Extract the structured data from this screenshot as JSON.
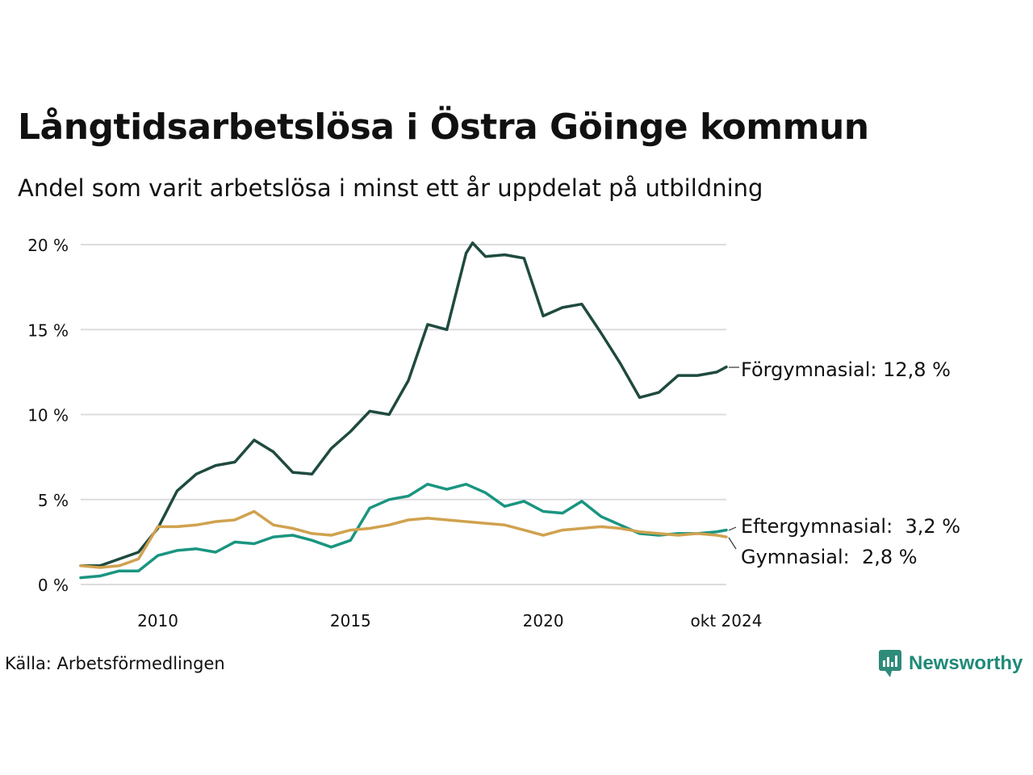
{
  "title": "Långtidsarbetslösa i Östra Göinge kommun",
  "subtitle": "Andel som varit arbetslösa i minst ett år uppdelat på utbildning",
  "source": "Källa: Arbetsförmedlingen",
  "brand": {
    "name": "Newsworthy",
    "icon": "newsworthy-logo-icon",
    "color": "#2e8b7a"
  },
  "colors": {
    "grid": "#dcdce0",
    "text": "#111111"
  },
  "chart_data": {
    "type": "line",
    "title": "Långtidsarbetslösa i Östra Göinge kommun",
    "subtitle": "Andel som varit arbetslösa i minst ett år uppdelat på utbildning",
    "ylim": [
      0,
      20
    ],
    "yticks": [
      0,
      5,
      10,
      15,
      20
    ],
    "ytick_labels": [
      "0 %",
      "5 %",
      "10 %",
      "15 %",
      "20 %"
    ],
    "xlim": [
      "2008-01",
      "2024-10"
    ],
    "xticks": [
      "2010-01",
      "2015-01",
      "2020-01",
      "2024-10"
    ],
    "xtick_labels": [
      "2010",
      "2015",
      "2020",
      "okt 2024"
    ],
    "grid": true,
    "legend": "end-of-line labels",
    "series": [
      {
        "name": "Förgymnasial",
        "end_label": "Förgymnasial: 12,8 %",
        "color": "#1f4a40",
        "points": [
          [
            "2008-01",
            1.1
          ],
          [
            "2008-07",
            1.1
          ],
          [
            "2009-01",
            1.5
          ],
          [
            "2009-07",
            1.9
          ],
          [
            "2010-01",
            3.3
          ],
          [
            "2010-07",
            5.5
          ],
          [
            "2011-01",
            6.5
          ],
          [
            "2011-07",
            7.0
          ],
          [
            "2012-01",
            7.2
          ],
          [
            "2012-07",
            8.5
          ],
          [
            "2013-01",
            7.8
          ],
          [
            "2013-07",
            6.6
          ],
          [
            "2014-01",
            6.5
          ],
          [
            "2014-07",
            8.0
          ],
          [
            "2015-01",
            9.0
          ],
          [
            "2015-07",
            10.2
          ],
          [
            "2016-01",
            10.0
          ],
          [
            "2016-07",
            12.0
          ],
          [
            "2017-01",
            15.3
          ],
          [
            "2017-07",
            15.0
          ],
          [
            "2018-01",
            19.5
          ],
          [
            "2018-03",
            20.1
          ],
          [
            "2018-07",
            19.3
          ],
          [
            "2019-01",
            19.4
          ],
          [
            "2019-07",
            19.2
          ],
          [
            "2020-01",
            15.8
          ],
          [
            "2020-07",
            16.3
          ],
          [
            "2021-01",
            16.5
          ],
          [
            "2021-07",
            14.8
          ],
          [
            "2022-01",
            13.0
          ],
          [
            "2022-07",
            11.0
          ],
          [
            "2023-01",
            11.3
          ],
          [
            "2023-07",
            12.3
          ],
          [
            "2024-01",
            12.3
          ],
          [
            "2024-07",
            12.5
          ],
          [
            "2024-10",
            12.8
          ]
        ]
      },
      {
        "name": "Eftergymnasial",
        "end_label": "Eftergymnasial:  3,2 %",
        "color": "#1a9580",
        "points": [
          [
            "2008-01",
            0.4
          ],
          [
            "2008-07",
            0.5
          ],
          [
            "2009-01",
            0.8
          ],
          [
            "2009-07",
            0.8
          ],
          [
            "2010-01",
            1.7
          ],
          [
            "2010-07",
            2.0
          ],
          [
            "2011-01",
            2.1
          ],
          [
            "2011-07",
            1.9
          ],
          [
            "2012-01",
            2.5
          ],
          [
            "2012-07",
            2.4
          ],
          [
            "2013-01",
            2.8
          ],
          [
            "2013-07",
            2.9
          ],
          [
            "2014-01",
            2.6
          ],
          [
            "2014-07",
            2.2
          ],
          [
            "2015-01",
            2.6
          ],
          [
            "2015-07",
            4.5
          ],
          [
            "2016-01",
            5.0
          ],
          [
            "2016-07",
            5.2
          ],
          [
            "2017-01",
            5.9
          ],
          [
            "2017-07",
            5.6
          ],
          [
            "2018-01",
            5.9
          ],
          [
            "2018-07",
            5.4
          ],
          [
            "2019-01",
            4.6
          ],
          [
            "2019-07",
            4.9
          ],
          [
            "2020-01",
            4.3
          ],
          [
            "2020-07",
            4.2
          ],
          [
            "2021-01",
            4.9
          ],
          [
            "2021-07",
            4.0
          ],
          [
            "2022-01",
            3.5
          ],
          [
            "2022-07",
            3.0
          ],
          [
            "2023-01",
            2.9
          ],
          [
            "2023-07",
            3.0
          ],
          [
            "2024-01",
            3.0
          ],
          [
            "2024-07",
            3.1
          ],
          [
            "2024-10",
            3.2
          ]
        ]
      },
      {
        "name": "Gymnasial",
        "end_label": "Gymnasial:  2,8 %",
        "color": "#d0a24f",
        "points": [
          [
            "2008-01",
            1.1
          ],
          [
            "2008-07",
            1.0
          ],
          [
            "2009-01",
            1.1
          ],
          [
            "2009-07",
            1.5
          ],
          [
            "2010-01",
            3.4
          ],
          [
            "2010-07",
            3.4
          ],
          [
            "2011-01",
            3.5
          ],
          [
            "2011-07",
            3.7
          ],
          [
            "2012-01",
            3.8
          ],
          [
            "2012-07",
            4.3
          ],
          [
            "2013-01",
            3.5
          ],
          [
            "2013-07",
            3.3
          ],
          [
            "2014-01",
            3.0
          ],
          [
            "2014-07",
            2.9
          ],
          [
            "2015-01",
            3.2
          ],
          [
            "2015-07",
            3.3
          ],
          [
            "2016-01",
            3.5
          ],
          [
            "2016-07",
            3.8
          ],
          [
            "2017-01",
            3.9
          ],
          [
            "2017-07",
            3.8
          ],
          [
            "2018-01",
            3.7
          ],
          [
            "2018-07",
            3.6
          ],
          [
            "2019-01",
            3.5
          ],
          [
            "2019-07",
            3.2
          ],
          [
            "2020-01",
            2.9
          ],
          [
            "2020-07",
            3.2
          ],
          [
            "2021-01",
            3.3
          ],
          [
            "2021-07",
            3.4
          ],
          [
            "2022-01",
            3.3
          ],
          [
            "2022-07",
            3.1
          ],
          [
            "2023-01",
            3.0
          ],
          [
            "2023-07",
            2.9
          ],
          [
            "2024-01",
            3.0
          ],
          [
            "2024-07",
            2.9
          ],
          [
            "2024-10",
            2.8
          ]
        ]
      }
    ]
  }
}
